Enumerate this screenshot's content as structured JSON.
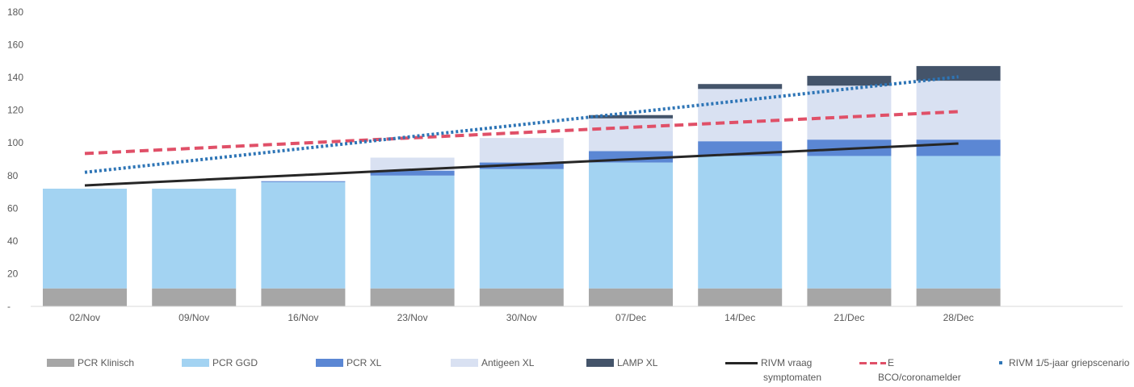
{
  "chart_data": {
    "type": "bar",
    "stacked": true,
    "categories": [
      "02/Nov",
      "09/Nov",
      "16/Nov",
      "23/Nov",
      "30/Nov",
      "07/Dec",
      "14/Dec",
      "21/Dec",
      "28/Dec"
    ],
    "ylim": [
      0,
      180
    ],
    "yticks": [
      "-",
      "20",
      "40",
      "60",
      "80",
      "100",
      "120",
      "140",
      "160",
      "180"
    ],
    "grid": false,
    "legend_position": "bottom",
    "series": [
      {
        "name": "PCR Klinisch",
        "kind": "bar",
        "color": "#a6a6a6",
        "values": [
          11,
          11,
          11,
          11,
          11,
          11,
          11,
          11,
          11
        ]
      },
      {
        "name": "PCR GGD",
        "kind": "bar",
        "color": "#a3d3f2",
        "values": [
          61,
          61,
          65,
          69,
          73,
          77,
          81,
          81,
          81
        ]
      },
      {
        "name": "PCR XL",
        "kind": "bar",
        "color": "#5b87d4",
        "values": [
          0,
          0,
          0.5,
          3,
          4,
          7,
          9,
          10,
          10
        ]
      },
      {
        "name": "Antigeen XL",
        "kind": "bar",
        "color": "#d9e1f2",
        "values": [
          0,
          0,
          0.5,
          8,
          15,
          20,
          32,
          33,
          36
        ]
      },
      {
        "name": "LAMP XL",
        "kind": "bar",
        "color": "#44546a",
        "values": [
          0,
          0,
          0,
          0,
          0,
          2,
          3,
          6,
          9
        ]
      },
      {
        "name": "RIVM vraag symptomaten",
        "kind": "line",
        "style": "solid",
        "color": "#262626",
        "values": [
          74,
          77.2,
          80.4,
          83.6,
          86.8,
          90,
          93.2,
          96.4,
          99.6
        ]
      },
      {
        "name": "E BCO/coronamelder",
        "kind": "line",
        "style": "dashed",
        "color": "#e05068",
        "values": [
          93.5,
          96.7,
          99.9,
          103.1,
          106.3,
          109.5,
          112.7,
          115.9,
          119.1
        ]
      },
      {
        "name": "RIVM 1/5-jaar griepscenario",
        "kind": "line",
        "style": "dotted",
        "color": "#2e75b6",
        "values": [
          82,
          89.3,
          96.6,
          103.9,
          111.2,
          118.5,
          125.8,
          133.1,
          140.4
        ]
      }
    ]
  },
  "legend": [
    {
      "label": "PCR Klinisch",
      "label2": "",
      "color": "#a6a6a6",
      "kind": "box"
    },
    {
      "label": "PCR GGD",
      "label2": "",
      "color": "#a3d3f2",
      "kind": "box"
    },
    {
      "label": "PCR XL",
      "label2": "",
      "color": "#5b87d4",
      "kind": "box"
    },
    {
      "label": "Antigeen XL",
      "label2": "",
      "color": "#d9e1f2",
      "kind": "box"
    },
    {
      "label": "LAMP XL",
      "label2": "",
      "color": "#44546a",
      "kind": "box"
    },
    {
      "label": "RIVM vraag",
      "label2": "symptomaten",
      "color": "#262626",
      "kind": "solid"
    },
    {
      "label": "E",
      "label2": "BCO/coronamelder",
      "color": "#e05068",
      "kind": "dashed"
    },
    {
      "label": "RIVM 1/5-jaar griepscenario",
      "label2": "",
      "color": "#2e75b6",
      "kind": "dot"
    }
  ]
}
